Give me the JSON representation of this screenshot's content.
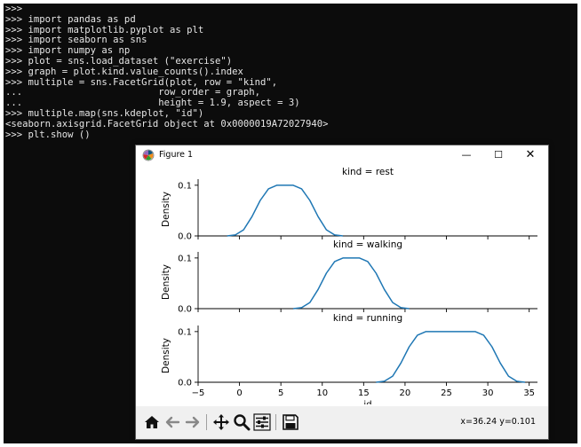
{
  "terminal": {
    "lines": [
      ">>>",
      ">>> import pandas as pd",
      ">>> import matplotlib.pyplot as plt",
      ">>> import seaborn as sns",
      ">>> import numpy as np",
      ">>> plot = sns.load_dataset (\"exercise\")",
      ">>> graph = plot.kind.value_counts().index",
      ">>> multiple = sns.FacetGrid(plot, row = \"kind\",",
      "...                        row_order = graph,",
      "...                        height = 1.9, aspect = 3)",
      ">>> multiple.map(sns.kdeplot, \"id\")",
      "<seaborn.axisgrid.FacetGrid object at 0x0000019A72027940>",
      ">>> plt.show ()"
    ]
  },
  "window": {
    "title": "Figure 1",
    "minimize_glyph": "—",
    "maximize_glyph": "☐",
    "close_glyph": "✕"
  },
  "toolbar": {
    "icons": [
      "home-icon",
      "back-arrow-icon",
      "forward-arrow-icon",
      "pan-icon",
      "zoom-icon",
      "subplots-config-icon",
      "save-icon"
    ],
    "coords": "x=36.24 y=0.101"
  },
  "chart_data": {
    "type": "line",
    "line_color": "#1f77b4",
    "xlim": [
      -5,
      36
    ],
    "ylim": [
      0,
      0.105
    ],
    "xticks": [
      -5,
      0,
      5,
      10,
      15,
      20,
      25,
      30,
      35
    ],
    "xtick_labels": [
      "−5",
      "0",
      "5",
      "10",
      "15",
      "20",
      "25",
      "30",
      "35"
    ],
    "yticks": [
      0.0,
      0.1
    ],
    "ytick_labels": [
      "0.0",
      "0.1"
    ],
    "xlabel": "id",
    "ylabel": "Density",
    "facets": [
      {
        "title": "kind = rest",
        "x": [
          -1.5,
          -0.5,
          0.5,
          1.5,
          2.5,
          3.5,
          4.5,
          5.5,
          6.5,
          7.5,
          8.5,
          9.5,
          10.5,
          11.5,
          12.5
        ],
        "y": [
          0.0,
          0.002,
          0.012,
          0.038,
          0.07,
          0.093,
          0.1,
          0.1,
          0.1,
          0.093,
          0.07,
          0.038,
          0.012,
          0.002,
          0.0
        ]
      },
      {
        "title": "kind = walking",
        "x": [
          6.5,
          7.5,
          8.5,
          9.5,
          10.5,
          11.5,
          12.5,
          13.5,
          14.5,
          15.5,
          16.5,
          17.5,
          18.5,
          19.5,
          20.5
        ],
        "y": [
          0.0,
          0.002,
          0.012,
          0.038,
          0.07,
          0.093,
          0.1,
          0.1,
          0.1,
          0.093,
          0.07,
          0.038,
          0.012,
          0.002,
          0.0
        ]
      },
      {
        "title": "kind = running",
        "x": [
          16.5,
          17.5,
          18.5,
          19.5,
          20.5,
          21.5,
          22.5,
          23.5,
          24.5,
          25.5,
          26.5,
          27.5,
          28.5,
          29.5,
          30.5,
          31.5,
          32.5,
          33.5,
          34.5
        ],
        "y": [
          0.0,
          0.002,
          0.012,
          0.038,
          0.07,
          0.093,
          0.1,
          0.1,
          0.1,
          0.1,
          0.1,
          0.1,
          0.1,
          0.093,
          0.07,
          0.038,
          0.012,
          0.002,
          0.0
        ]
      }
    ]
  }
}
